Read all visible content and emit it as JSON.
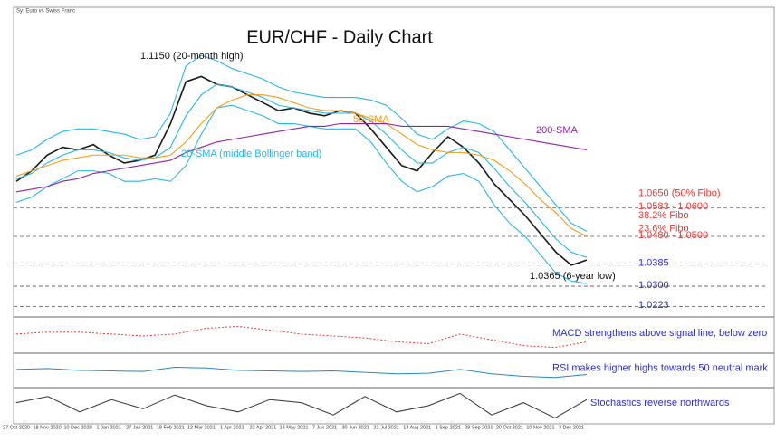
{
  "chart_data": [
    {
      "type": "line",
      "title": "EUR/CHF - Daily Chart",
      "subtitle": "Sy: Euro vs Swiss Franc",
      "categories": [
        "27 Oct 2020",
        null,
        "18 Nov 2020",
        null,
        "10 Dec 2020",
        null,
        "1 Jan 2021",
        null,
        "27 Jan 2021",
        null,
        "18 Feb 2021",
        null,
        "12 Mar 2021",
        null,
        "1 Apr 2021",
        null,
        "23 Apr 2021",
        null,
        "13 May 2021",
        null,
        "7 Jun 2021",
        null,
        "30 Jun 2021",
        null,
        "22 Jul 2021",
        null,
        "13 Aug 2021",
        null,
        "1 Sep 2021",
        null,
        "28 Sep 2021",
        null,
        "20 Oct 2021",
        null,
        "10 Nov 2021",
        null,
        "3 Dec 2021",
        null
      ],
      "ylim": [
        1.02,
        1.135
      ],
      "series": [
        {
          "name": "EUR/CHF",
          "color": "#1a1a1a",
          "values": [
            1.07,
            1.074,
            1.08,
            1.083,
            1.082,
            1.084,
            1.08,
            1.077,
            1.078,
            1.08,
            1.092,
            1.108,
            1.11,
            1.107,
            1.106,
            1.103,
            1.1,
            1.097,
            1.098,
            1.096,
            1.095,
            1.097,
            1.096,
            1.09,
            1.083,
            1.076,
            1.074,
            1.081,
            1.087,
            1.083,
            1.077,
            1.069,
            1.063,
            1.057,
            1.05,
            1.043,
            1.038,
            1.04
          ]
        },
        {
          "name": "20-SMA (middle Bollinger band)",
          "color": "#29b6e8",
          "values": [
            1.071,
            1.073,
            1.077,
            1.08,
            1.082,
            1.082,
            1.081,
            1.079,
            1.078,
            1.079,
            1.083,
            1.095,
            1.103,
            1.107,
            1.106,
            1.104,
            1.102,
            1.099,
            1.098,
            1.097,
            1.096,
            1.096,
            1.096,
            1.093,
            1.088,
            1.082,
            1.077,
            1.077,
            1.081,
            1.083,
            1.081,
            1.075,
            1.068,
            1.062,
            1.055,
            1.048,
            1.043,
            1.041
          ]
        },
        {
          "color": "#29b6e8",
          "values": [
            1.08,
            1.082,
            1.086,
            1.089,
            1.09,
            1.09,
            1.089,
            1.088,
            1.086,
            1.087,
            1.096,
            1.114,
            1.118,
            1.116,
            1.113,
            1.111,
            1.109,
            1.106,
            1.104,
            1.103,
            1.102,
            1.102,
            1.102,
            1.101,
            1.099,
            1.094,
            1.088,
            1.086,
            1.09,
            1.093,
            1.092,
            1.089,
            1.082,
            1.075,
            1.068,
            1.061,
            1.054,
            1.051
          ]
        },
        {
          "color": "#29b6e8",
          "values": [
            1.062,
            1.064,
            1.068,
            1.071,
            1.074,
            1.074,
            1.073,
            1.07,
            1.07,
            1.071,
            1.07,
            1.076,
            1.088,
            1.098,
            1.099,
            1.097,
            1.095,
            1.092,
            1.092,
            1.091,
            1.09,
            1.09,
            1.09,
            1.085,
            1.077,
            1.07,
            1.066,
            1.068,
            1.072,
            1.073,
            1.07,
            1.061,
            1.054,
            1.049,
            1.042,
            1.035,
            1.032,
            1.031
          ]
        },
        {
          "name": "50-SMA",
          "color": "#f39c12",
          "values": [
            1.072,
            1.074,
            1.076,
            1.078,
            1.079,
            1.08,
            1.08,
            1.08,
            1.079,
            1.079,
            1.08,
            1.085,
            1.092,
            1.098,
            1.101,
            1.103,
            1.103,
            1.102,
            1.1,
            1.098,
            1.097,
            1.097,
            1.096,
            1.094,
            1.092,
            1.088,
            1.084,
            1.082,
            1.081,
            1.081,
            1.08,
            1.078,
            1.074,
            1.069,
            1.063,
            1.058,
            1.052,
            1.049
          ]
        },
        {
          "name": "200-SMA",
          "color": "#8e24aa",
          "values": [
            1.066,
            1.067,
            1.068,
            1.07,
            1.071,
            1.073,
            1.074,
            1.075,
            1.076,
            1.077,
            1.078,
            1.081,
            1.083,
            1.085,
            1.086,
            1.087,
            1.088,
            1.089,
            1.09,
            1.091,
            1.091,
            1.092,
            1.092,
            1.092,
            1.092,
            1.091,
            1.091,
            1.091,
            1.091,
            1.09,
            1.089,
            1.088,
            1.087,
            1.086,
            1.085,
            1.084,
            1.083,
            1.082
          ]
        }
      ],
      "levels": [
        {
          "value": 1.065,
          "label": "1.0650 (50% Fibo)",
          "color": "#e53935",
          "line": false
        },
        {
          "value": 1.06,
          "label": "1.0583 - 1.0600",
          "color": "#e53935",
          "line": true
        },
        {
          "value": 1.0565,
          "label": "38.2% Fibo",
          "color": "#e53935",
          "line": false
        },
        {
          "value": 1.0515,
          "label": "23.6% Fibo",
          "color": "#e53935",
          "line": false
        },
        {
          "value": 1.049,
          "label": "1.0480 - 1.0500",
          "color": "#e53935",
          "line": true
        },
        {
          "value": 1.0385,
          "label": "1.0385",
          "color": "#2b2bd0",
          "line": true
        },
        {
          "value": 1.03,
          "label": "1.0300",
          "color": "#2b2bd0",
          "line": true
        },
        {
          "value": 1.0223,
          "label": "1.0223",
          "color": "#2b2bd0",
          "line": true
        }
      ],
      "annotations": [
        {
          "value": 1.115,
          "label": "1.1150 (20-month high)"
        },
        {
          "value": 1.0365,
          "label": "1.0365 (6-year low)"
        }
      ]
    },
    {
      "type": "line",
      "note": "MACD strengthens above signal line, below zero",
      "color": "#e53935",
      "ylim": [
        -8,
        8
      ],
      "values": [
        1,
        2,
        2,
        1,
        0,
        1,
        4,
        5,
        3,
        1,
        0,
        -1,
        -3,
        -4,
        1,
        -2,
        -5,
        -6,
        -3
      ]
    },
    {
      "type": "line",
      "note": "RSI makes higher highs towards 50 neutral mark",
      "color": "#2e86c1",
      "ylim": [
        0,
        100
      ],
      "values": [
        55,
        58,
        52,
        50,
        48,
        62,
        60,
        52,
        50,
        48,
        50,
        45,
        40,
        42,
        55,
        40,
        32,
        28,
        38
      ]
    },
    {
      "type": "line",
      "note": "Stochastics reverse northwards",
      "color": "#333333",
      "ylim": [
        0,
        100
      ],
      "values": [
        60,
        80,
        30,
        70,
        40,
        85,
        50,
        30,
        70,
        60,
        20,
        80,
        30,
        50,
        90,
        20,
        60,
        10,
        70
      ]
    }
  ]
}
